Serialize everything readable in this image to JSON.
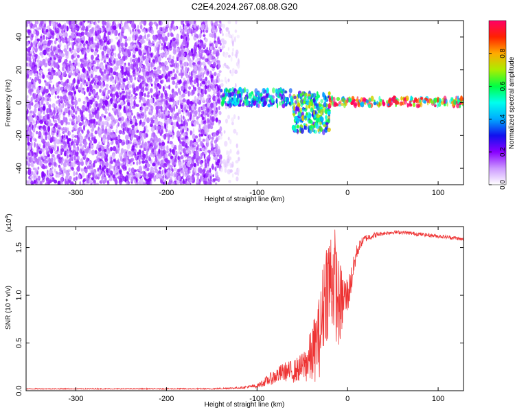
{
  "title": "C2E4.2024.267.08.08.G20",
  "colors": {
    "snr_line": "#ee3333",
    "colorbar": [
      "#ffffff",
      "#cc99ff",
      "#8800ff",
      "#1111ee",
      "#00aaff",
      "#00ffee",
      "#00ff44",
      "#aaee00",
      "#ffaa00",
      "#ff2200",
      "#ff0066"
    ]
  },
  "chart_data": [
    {
      "type": "heatmap",
      "name": "spectrogram",
      "xlabel": "Height of straight line (km)",
      "ylabel": "Frequency (Hz)",
      "xlim": [
        -355,
        128
      ],
      "ylim": [
        -50,
        50
      ],
      "x_ticks": [
        -300,
        -200,
        -100,
        0,
        100
      ],
      "y_ticks": [
        -40,
        -20,
        0,
        20,
        40
      ],
      "colorbar": {
        "label": "Normalized spectral amplitude",
        "range": [
          0,
          1
        ],
        "ticks": [
          "0.0",
          "0.2",
          "0.4",
          "0.6",
          "0.8"
        ]
      },
      "regions": [
        {
          "x_range": [
            -355,
            -140
          ],
          "y_range": [
            -50,
            50
          ],
          "amplitude": 0.15,
          "description": "broadband noise speckle"
        },
        {
          "x_range": [
            -140,
            -120
          ],
          "y_range": [
            -50,
            50
          ],
          "amplitude": 0.05,
          "description": "faint noise edge"
        },
        {
          "x_range": [
            -140,
            -60
          ],
          "y_range": [
            -2,
            8
          ],
          "amplitude": 0.45
        },
        {
          "x_range": [
            -60,
            -20
          ],
          "y_range": [
            -18,
            6
          ],
          "amplitude": 0.55
        },
        {
          "x_range": [
            -20,
            128
          ],
          "y_range": [
            -2,
            3
          ],
          "amplitude": 0.9
        }
      ]
    },
    {
      "type": "line",
      "name": "snr",
      "xlabel": "Height of straight line (km)",
      "ylabel": "SNR (10 * v/v)",
      "y_multiplier": "(x10",
      "y_exponent": "4",
      "y_multiplier_close": ")",
      "xlim": [
        -355,
        128
      ],
      "ylim": [
        0,
        1.72
      ],
      "x_ticks": [
        -300,
        -200,
        -100,
        0,
        100
      ],
      "y_ticks": [
        "0.0",
        "0.5",
        "1.0",
        "1.5"
      ],
      "y_tick_values": [
        0,
        0.5,
        1.0,
        1.5
      ],
      "x": [
        -355,
        -300,
        -250,
        -200,
        -150,
        -120,
        -100,
        -90,
        -80,
        -70,
        -60,
        -50,
        -40,
        -30,
        -25,
        -20,
        -15,
        -10,
        -5,
        0,
        5,
        10,
        15,
        20,
        30,
        40,
        50,
        60,
        70,
        80,
        90,
        100,
        110,
        120,
        128
      ],
      "y": [
        0.02,
        0.02,
        0.02,
        0.02,
        0.02,
        0.03,
        0.05,
        0.1,
        0.15,
        0.2,
        0.2,
        0.25,
        0.35,
        0.6,
        1.05,
        1.15,
        1.2,
        0.9,
        0.95,
        1.0,
        1.2,
        1.45,
        1.55,
        1.6,
        1.63,
        1.65,
        1.66,
        1.66,
        1.65,
        1.64,
        1.63,
        1.62,
        1.61,
        1.6,
        1.58
      ],
      "noise": [
        0.005,
        0.005,
        0.005,
        0.005,
        0.006,
        0.01,
        0.02,
        0.05,
        0.08,
        0.1,
        0.12,
        0.15,
        0.3,
        0.45,
        0.55,
        0.6,
        0.6,
        0.5,
        0.3,
        0.2,
        0.15,
        0.08,
        0.05,
        0.04,
        0.03,
        0.02,
        0.02,
        0.02,
        0.02,
        0.02,
        0.02,
        0.02,
        0.02,
        0.02,
        0.02
      ]
    }
  ]
}
